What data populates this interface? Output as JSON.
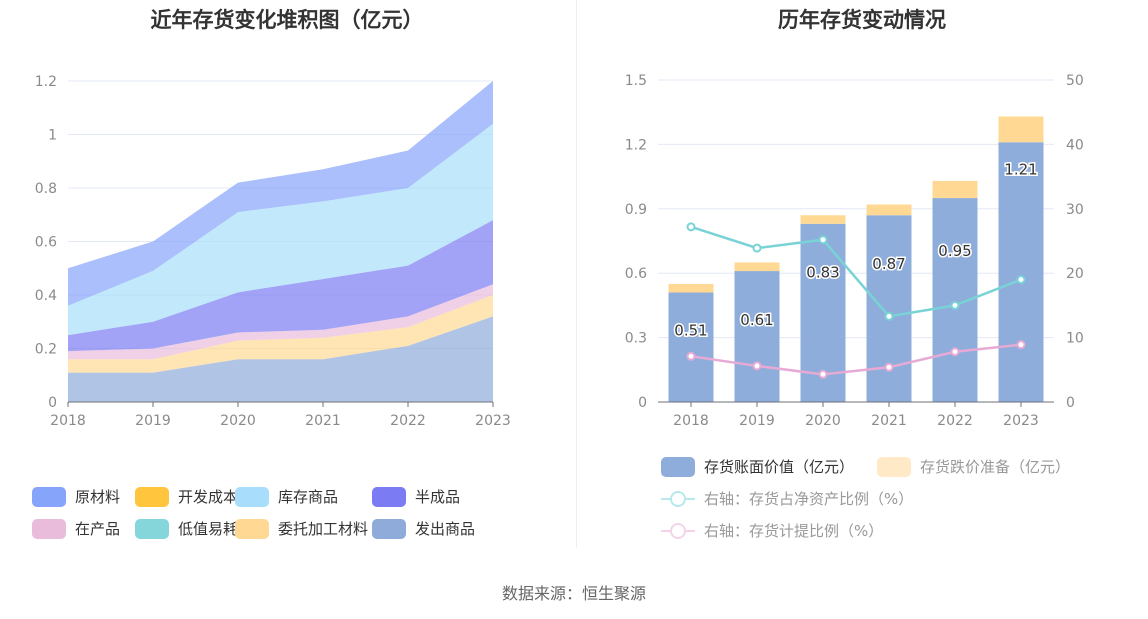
{
  "left_chart": {
    "title": "近年存货变化堆积图（亿元）"
  },
  "right_chart": {
    "title": "历年存货变动情况"
  },
  "source": "数据来源：恒生聚源",
  "chart_data": [
    {
      "type": "area",
      "stacked": true,
      "title": "近年存货变化堆积图（亿元）",
      "categories": [
        "2018",
        "2019",
        "2020",
        "2021",
        "2022",
        "2023"
      ],
      "ylim": [
        0,
        1.2
      ],
      "yticks": [
        "0",
        "0.2",
        "0.4",
        "0.6",
        "0.8",
        "1",
        "1.2"
      ],
      "ytick_values": [
        0,
        0.2,
        0.4,
        0.6,
        0.8,
        1.0,
        1.2
      ],
      "grid": true,
      "legend_position": "bottom",
      "series": [
        {
          "name": "发出商品",
          "color": "#8fabda",
          "values": [
            0.11,
            0.11,
            0.16,
            0.16,
            0.21,
            0.32
          ]
        },
        {
          "name": "委托加工材料",
          "color": "#ffd894",
          "values": [
            0.05,
            0.05,
            0.07,
            0.08,
            0.07,
            0.08
          ]
        },
        {
          "name": "低值易耗品",
          "color": "#85d6da",
          "values": [
            0,
            0,
            0,
            0,
            0,
            0
          ]
        },
        {
          "name": "在产品",
          "color": "#e9bcdc",
          "values": [
            0.03,
            0.04,
            0.03,
            0.03,
            0.04,
            0.04
          ]
        },
        {
          "name": "半成品",
          "color": "#7b7cf3",
          "values": [
            0.06,
            0.1,
            0.15,
            0.19,
            0.19,
            0.24
          ]
        },
        {
          "name": "库存商品",
          "color": "#a8defb",
          "values": [
            0.11,
            0.19,
            0.3,
            0.29,
            0.29,
            0.36
          ]
        },
        {
          "name": "开发成本",
          "color": "#ffc53d",
          "values": [
            0,
            0,
            0,
            0,
            0,
            0
          ]
        },
        {
          "name": "原材料",
          "color": "#86a4fa",
          "values": [
            0.14,
            0.11,
            0.11,
            0.12,
            0.14,
            0.16
          ]
        }
      ],
      "legend_order": [
        "原材料",
        "开发成本",
        "库存商品",
        "半成品",
        "在产品",
        "低值易耗品",
        "委托加工材料",
        "发出商品"
      ]
    },
    {
      "type": "bar",
      "stacked": true,
      "title": "历年存货变动情况",
      "categories": [
        "2018",
        "2019",
        "2020",
        "2021",
        "2022",
        "2023"
      ],
      "ylim": [
        0,
        1.5
      ],
      "yticks": [
        "0",
        "0.3",
        "0.6",
        "0.9",
        "1.2",
        "1.5"
      ],
      "ytick_values": [
        0,
        0.3,
        0.6,
        0.9,
        1.2,
        1.5
      ],
      "y2lim": [
        0,
        50
      ],
      "y2ticks": [
        "0",
        "10",
        "20",
        "30",
        "40",
        "50"
      ],
      "y2tick_values": [
        0,
        10,
        20,
        30,
        40,
        50
      ],
      "grid": true,
      "legend_position": "bottom",
      "series": [
        {
          "name": "存货账面价值（亿元）",
          "type": "bar",
          "color": "#8eaddb",
          "values": [
            0.51,
            0.61,
            0.83,
            0.87,
            0.95,
            1.21
          ],
          "labels": [
            "0.51",
            "0.61",
            "0.83",
            "0.87",
            "0.95",
            "1.21"
          ]
        },
        {
          "name": "存货跌价准备（亿元）",
          "type": "bar",
          "color": "#ffd894",
          "legend_color": "#ffe9c7",
          "values": [
            0.04,
            0.04,
            0.04,
            0.05,
            0.08,
            0.12
          ]
        },
        {
          "name": "右轴：存货占净资产比例（%）",
          "type": "line",
          "axis": "right",
          "color": "#79d3d6",
          "legend_color": "#b6e9eb",
          "values": [
            27.2,
            23.9,
            25.2,
            13.3,
            15.0,
            19.0
          ]
        },
        {
          "name": "右轴：存货计提比例（%）",
          "type": "line",
          "axis": "right",
          "color": "#e6aad5",
          "legend_color": "#f3d3ea",
          "values": [
            7.1,
            5.6,
            4.3,
            5.4,
            7.8,
            8.9
          ]
        }
      ]
    }
  ]
}
